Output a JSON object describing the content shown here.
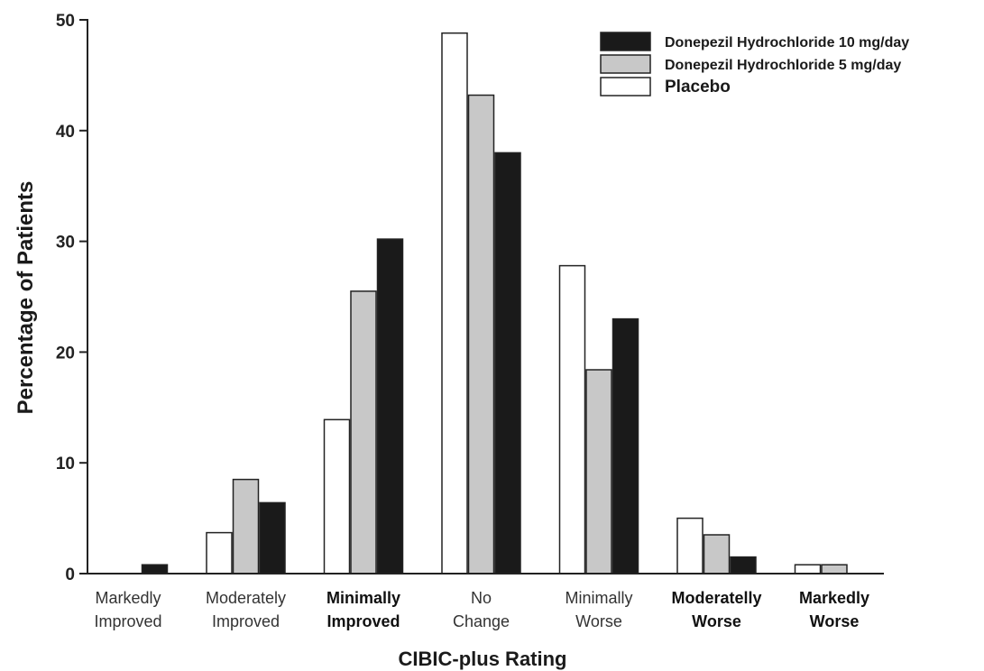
{
  "chart_data": {
    "type": "bar",
    "xlabel": "CIBIC-plus Rating",
    "ylabel": "Percentage of Patients",
    "ylim": [
      0,
      50
    ],
    "yticks": [
      "0",
      "10",
      "20",
      "30",
      "40",
      "50"
    ],
    "grid": false,
    "legend_position": "top-right",
    "categories": [
      {
        "lines": [
          "Markedly",
          "Improved"
        ],
        "bold": false
      },
      {
        "lines": [
          "Moderately",
          "Improved"
        ],
        "bold": false
      },
      {
        "lines": [
          "Minimally",
          "Improved"
        ],
        "bold": true
      },
      {
        "lines": [
          "No",
          "Change"
        ],
        "bold": false
      },
      {
        "lines": [
          "Minimally",
          "Worse"
        ],
        "bold": false
      },
      {
        "lines": [
          "Moderatelly",
          "Worse"
        ],
        "bold": true
      },
      {
        "lines": [
          "Markedly",
          "Worse"
        ],
        "bold": true
      }
    ],
    "series": [
      {
        "name": "Placebo",
        "color": "#ffffff",
        "values": [
          0,
          3.7,
          13.9,
          48.8,
          27.8,
          5.0,
          0.8
        ]
      },
      {
        "name": "Donepezil Hydrochloride 5 mg/day",
        "color": "#c8c8c8",
        "values": [
          0,
          8.5,
          25.5,
          43.2,
          18.4,
          3.5,
          0.8
        ]
      },
      {
        "name": "Donepezil Hydrochloride 10 mg/day",
        "color": "#1a1a1a",
        "values": [
          0.8,
          6.4,
          30.2,
          38.0,
          23.0,
          1.5,
          0
        ]
      }
    ],
    "legend_order": [
      2,
      1,
      0
    ]
  }
}
